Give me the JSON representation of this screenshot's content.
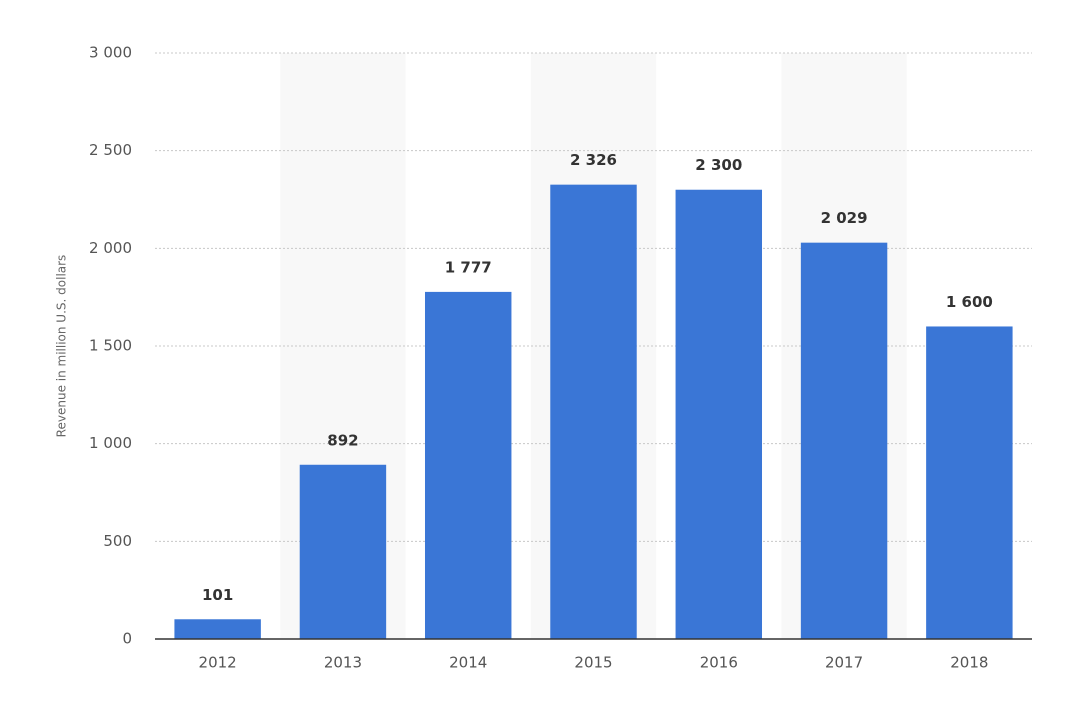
{
  "chart_data": {
    "type": "bar",
    "y_axis_label": "Revenue in million U.S. dollars",
    "categories": [
      "2012",
      "2013",
      "2014",
      "2015",
      "2016",
      "2017",
      "2018"
    ],
    "values": [
      101,
      892,
      1777,
      2326,
      2300,
      2029,
      1600
    ],
    "value_labels": [
      "101",
      "892",
      "1 777",
      "2 326",
      "2 300",
      "2 029",
      "1 600"
    ],
    "color": "#3a76d6",
    "ylim": [
      0,
      3000
    ],
    "yticks": [
      0,
      500,
      {
        "value": 1000,
        "label": "1 000"
      },
      {
        "value": 1500,
        "label": "1 500"
      },
      {
        "value": 2000,
        "label": "2 000"
      },
      {
        "value": 2500,
        "label": "2 500"
      },
      {
        "value": 3000,
        "label": "3 000"
      }
    ],
    "grid": true
  }
}
